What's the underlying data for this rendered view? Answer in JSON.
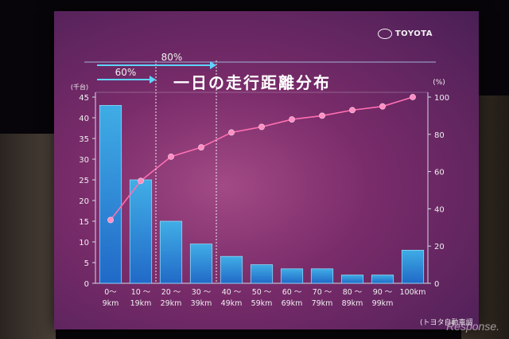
{
  "brand": "TOYOTA",
  "watermark": "Response.",
  "chart_data": {
    "type": "bar",
    "title": "一日の走行距離分布",
    "source": "(トヨタ自動車調べ)",
    "left_axis_unit": "(千台)",
    "right_axis_unit": "(%)",
    "ylim_left": [
      0,
      45
    ],
    "yticks_left": [
      0,
      5,
      10,
      15,
      20,
      25,
      30,
      35,
      40,
      45
    ],
    "ylim_right": [
      0,
      100
    ],
    "yticks_right": [
      0,
      20,
      40,
      60,
      80,
      100
    ],
    "categories": [
      {
        "top": "0～",
        "bottom": "9km"
      },
      {
        "top": "10 ～",
        "bottom": "19km"
      },
      {
        "top": "20 ～",
        "bottom": "29km"
      },
      {
        "top": "30 ～",
        "bottom": "39km"
      },
      {
        "top": "40 ～",
        "bottom": "49km"
      },
      {
        "top": "50 ～",
        "bottom": "59km"
      },
      {
        "top": "60 ～",
        "bottom": "69km"
      },
      {
        "top": "70 ～",
        "bottom": "79km"
      },
      {
        "top": "80 ～",
        "bottom": "89km"
      },
      {
        "top": "90 ～",
        "bottom": "99km"
      },
      {
        "top": "",
        "bottom": "100km"
      }
    ],
    "series": [
      {
        "axis": "left",
        "kind": "bar",
        "values": [
          43,
          25,
          15,
          9.5,
          6.5,
          4.5,
          3.5,
          3.5,
          2,
          2,
          8
        ]
      },
      {
        "axis": "right",
        "kind": "line",
        "values": [
          34,
          55,
          68,
          73,
          81,
          84,
          88,
          90,
          93,
          95,
          100
        ]
      }
    ],
    "annotations": [
      {
        "label": "60%",
        "through_category": 1
      },
      {
        "label": "80%",
        "through_category": 3
      }
    ],
    "colors": {
      "bar": "#2aa7e6",
      "bar_edge": "#8fe3ff",
      "line": "#ff6fb2",
      "marker": "#ff8ec4",
      "text": "#f0f0f0",
      "arrow": "#5fd4ff"
    }
  }
}
